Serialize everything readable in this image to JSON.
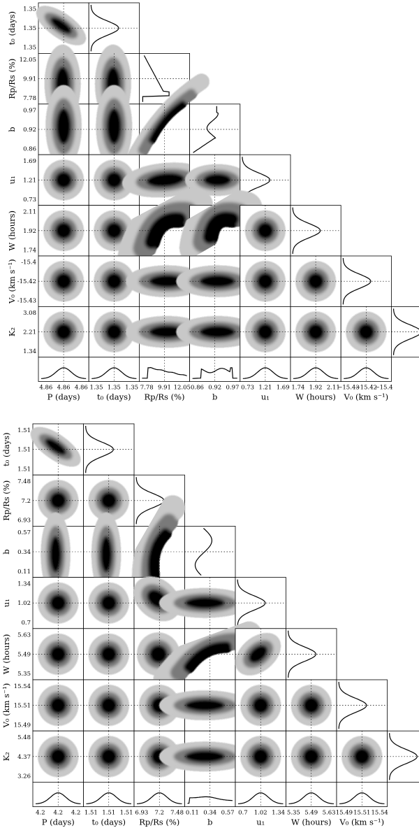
{
  "chart_data": [
    {
      "type": "heatmap",
      "subtype": "corner-plot",
      "params": [
        {
          "label": "P (days)",
          "ticks": [
            "4.86",
            "4.86",
            "4.86"
          ]
        },
        {
          "label": "t₀ (days)",
          "ticks": [
            "1.35",
            "1.35",
            "1.35"
          ]
        },
        {
          "label": "Rp/Rs (%)",
          "ticks": [
            "7.78",
            "9.91",
            "12.05"
          ]
        },
        {
          "label": "b",
          "ticks": [
            "0.86",
            "0.92",
            "0.97"
          ]
        },
        {
          "label": "u₁",
          "ticks": [
            "0.73",
            "1.21",
            "1.69"
          ]
        },
        {
          "label": "W (hours)",
          "ticks": [
            "1.74",
            "1.92",
            "2.11"
          ]
        },
        {
          "label": "V₀ (km s⁻¹)",
          "ticks": [
            "-15.43",
            "-15.42",
            "-15.4"
          ]
        },
        {
          "label": "K₂",
          "ticks": [
            "1.34",
            "2.21",
            "3.08"
          ]
        }
      ],
      "xlabels": [
        "P (days)",
        "t₀ (days)",
        "Rp/Rs (%)",
        "b",
        "u₁",
        "W (hours)",
        "V₀ (km s⁻¹)"
      ],
      "xticks": [
        [
          "4.86",
          "4.86",
          "4.86"
        ],
        [
          "1.35",
          "1.35",
          "1.35"
        ],
        [
          "7.78",
          "9.91",
          "12.05"
        ],
        [
          "0.86",
          "0.92",
          "0.97"
        ],
        [
          "0.73",
          "1.21",
          "1.69"
        ],
        [
          "1.74",
          "1.92",
          "2.11"
        ],
        [
          "−15.43",
          "−15.42",
          "−15.4"
        ]
      ],
      "ylabels": [
        "t₀ (days)",
        "Rp/Rs (%)",
        "b",
        "u₁",
        "W (hours)",
        "V₀ (km s⁻¹)",
        "K₂"
      ],
      "yticks": [
        [
          "1.35",
          "1.35",
          "1.35"
        ],
        [
          "12.05",
          "9.91",
          "7.78"
        ],
        [
          "0.97",
          "0.92",
          "0.86"
        ],
        [
          "1.69",
          "1.21",
          "0.73"
        ],
        [
          "2.11",
          "1.92",
          "1.74"
        ],
        [
          "-15.4",
          "-15.42",
          "-15.43"
        ],
        [
          "3.08",
          "2.21",
          "1.34"
        ]
      ],
      "medians": {
        "P (days)": 4.86,
        "t₀ (days)": 1.35,
        "Rp/Rs (%)": 9.91,
        "b": 0.92,
        "u₁": 1.21,
        "W (hours)": 1.92,
        "V₀ (km s⁻¹)": -15.42,
        "K₂": 2.21
      },
      "marginal_shapes": [
        "gaussian",
        "gaussian",
        "skewed-low",
        "skewed-high",
        "gaussian",
        "gaussian",
        "gaussian",
        "gaussian"
      ]
    },
    {
      "type": "heatmap",
      "subtype": "corner-plot",
      "params": [
        {
          "label": "P (days)",
          "ticks": [
            "4.2",
            "4.2",
            "4.2"
          ]
        },
        {
          "label": "t₀ (days)",
          "ticks": [
            "1.51",
            "1.51",
            "1.51"
          ]
        },
        {
          "label": "Rp/Rs (%)",
          "ticks": [
            "6.93",
            "7.2",
            "7.48"
          ]
        },
        {
          "label": "b",
          "ticks": [
            "0.11",
            "0.34",
            "0.57"
          ]
        },
        {
          "label": "u₁",
          "ticks": [
            "0.7",
            "1.02",
            "1.34"
          ]
        },
        {
          "label": "W (hours)",
          "ticks": [
            "5.35",
            "5.49",
            "5.63"
          ]
        },
        {
          "label": "V₀ (km s⁻¹)",
          "ticks": [
            "15.49",
            "15.51",
            "15.54"
          ]
        },
        {
          "label": "K₂",
          "ticks": [
            "3.26",
            "4.37",
            "5.48"
          ]
        }
      ],
      "xlabels": [
        "P (days)",
        "t₀ (days)",
        "Rp/Rs (%)",
        "b",
        "u₁",
        "W (hours)",
        "V₀ (km s⁻¹)"
      ],
      "xticks": [
        [
          "4.2",
          "4.2",
          "4.2"
        ],
        [
          "1.51",
          "1.51",
          "1.51"
        ],
        [
          "6.93",
          "7.2",
          "7.48"
        ],
        [
          "0.11",
          "0.34",
          "0.57"
        ],
        [
          "0.7",
          "1.02",
          "1.34"
        ],
        [
          "5.35",
          "5.49",
          "5.63"
        ],
        [
          "15.49",
          "15.51",
          "15.54"
        ]
      ],
      "ylabels": [
        "t₀ (days)",
        "Rp/Rs (%)",
        "b",
        "u₁",
        "W (hours)",
        "V₀ (km s⁻¹)",
        "K₂"
      ],
      "yticks": [
        [
          "1.51",
          "1.51",
          "1.51"
        ],
        [
          "7.48",
          "7.2",
          "6.93"
        ],
        [
          "0.57",
          "0.34",
          "0.11"
        ],
        [
          "1.34",
          "1.02",
          "0.7"
        ],
        [
          "5.63",
          "5.49",
          "5.35"
        ],
        [
          "15.54",
          "15.51",
          "15.49"
        ],
        [
          "5.48",
          "4.37",
          "3.26"
        ]
      ],
      "medians": {
        "P (days)": 4.2,
        "t₀ (days)": 1.51,
        "Rp/Rs (%)": 7.2,
        "b": 0.34,
        "u₁": 1.02,
        "W (hours)": 5.49,
        "V₀ (km s⁻¹)": 15.51,
        "K₂": 4.37
      },
      "marginal_shapes": [
        "gaussian",
        "gaussian",
        "gaussian",
        "broad-flat",
        "gaussian",
        "gaussian",
        "gaussian",
        "gaussian"
      ]
    }
  ]
}
